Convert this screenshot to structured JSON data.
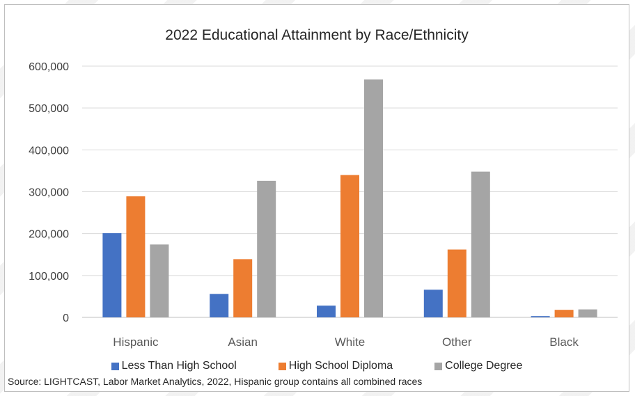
{
  "chart_data": {
    "type": "bar",
    "title": "2022 Educational Attainment by Race/Ethnicity",
    "categories": [
      "Hispanic",
      "Asian",
      "White",
      "Other",
      "Black"
    ],
    "series": [
      {
        "name": "Less Than High School",
        "color": "#4472C4",
        "values": [
          201000,
          56000,
          28000,
          66000,
          3000
        ]
      },
      {
        "name": "High School Diploma",
        "color": "#ED7D31",
        "values": [
          289000,
          139000,
          340000,
          162000,
          18000
        ]
      },
      {
        "name": "College Degree",
        "color": "#A5A5A5",
        "values": [
          174000,
          326000,
          568000,
          348000,
          19000
        ]
      }
    ],
    "ylim": [
      0,
      600000
    ],
    "yticks": [
      "0",
      "100,000",
      "200,000",
      "300,000",
      "400,000",
      "500,000",
      "600,000"
    ],
    "xlabel": "",
    "ylabel": "",
    "grid": true,
    "legend_position": "bottom"
  },
  "source_note": "Source: LIGHTCAST, Labor Market Analytics, 2022, Hispanic group contains all combined races"
}
